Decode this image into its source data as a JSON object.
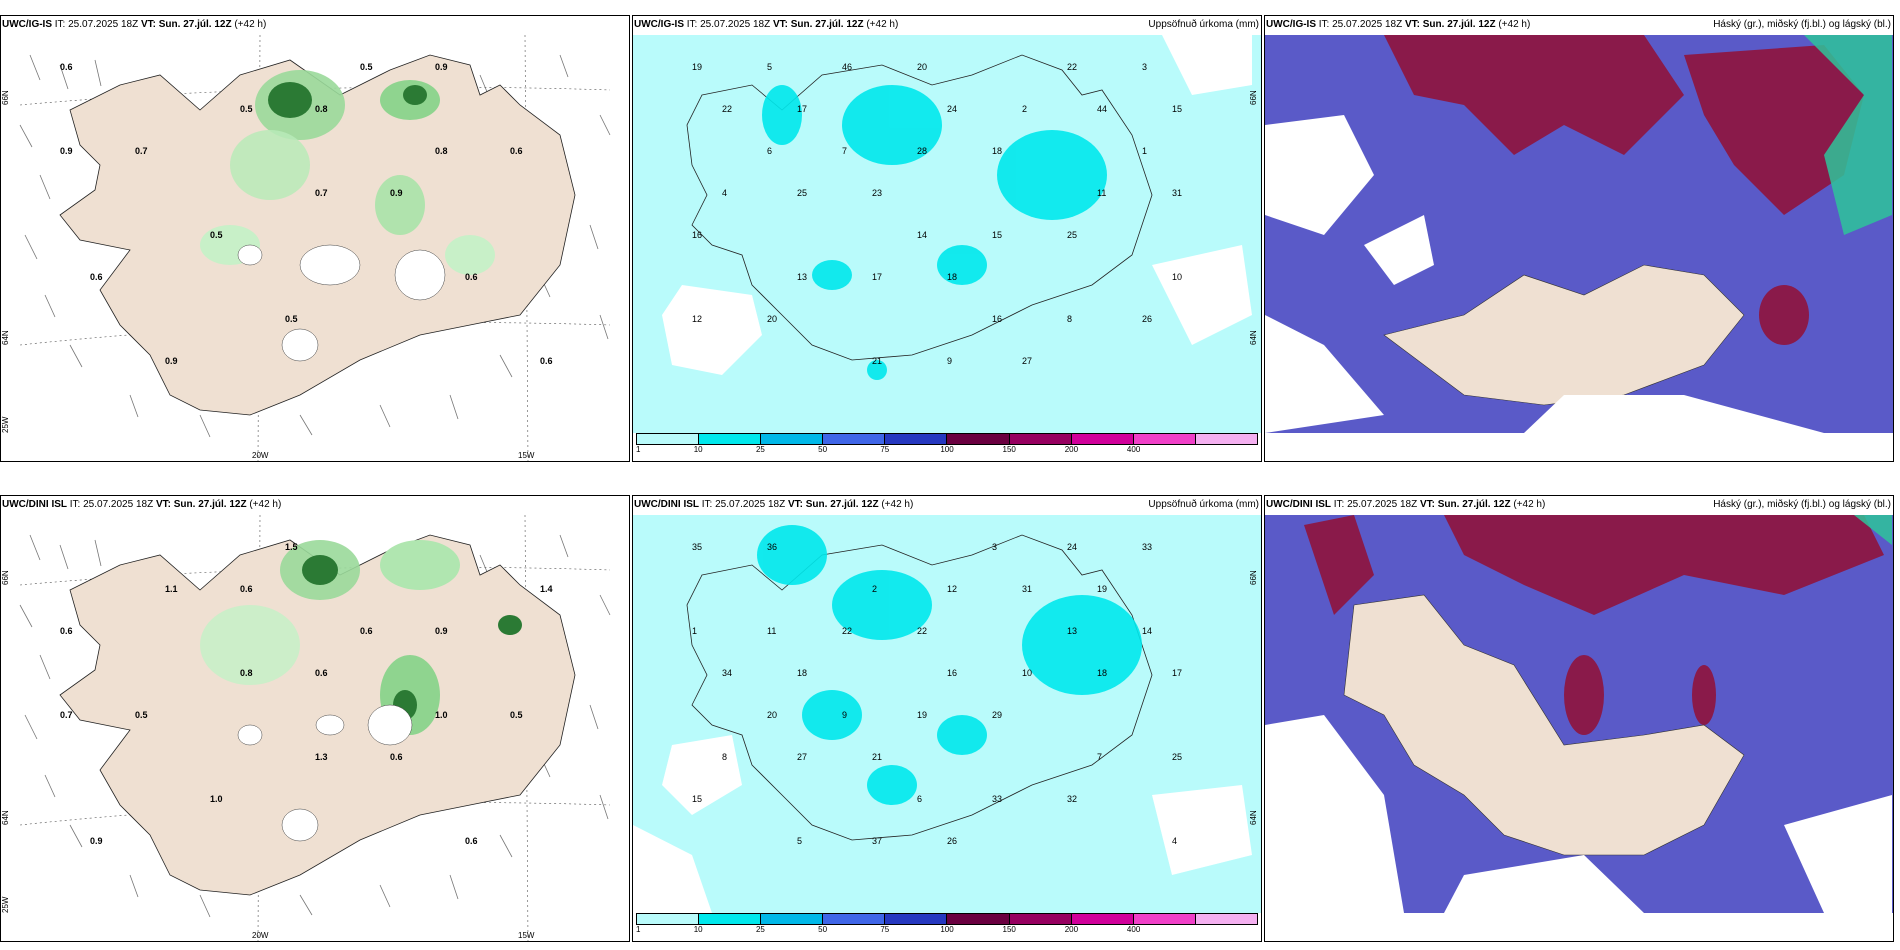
{
  "panels": [
    {
      "model": "UWC/IG-IS",
      "it_label": "IT:",
      "it_value": "25.07.2025 18Z",
      "vt_label": "VT:",
      "vt_value": "Sun. 27.júl. 12Z",
      "lead": "(+42 h)",
      "right_title": "",
      "lat_labels": [
        "66N",
        "64N",
        "25W"
      ],
      "lon_labels": [
        "20W",
        "15W"
      ],
      "values": [
        "0.6",
        "0.9",
        "0.8",
        "0.7",
        "0.6",
        "0.9",
        "0.5",
        "0.6",
        "0.6",
        "0.5",
        "0.9",
        "0.6",
        "0.5",
        "0.5",
        "0.9",
        "0.8",
        "0.7"
      ]
    },
    {
      "model": "UWC/IG-IS",
      "it_label": "IT:",
      "it_value": "25.07.2025 18Z",
      "vt_label": "VT:",
      "vt_value": "Sun. 27.júl. 12Z",
      "lead": "(+42 h)",
      "right_title": "Uppsöfnuð úrkoma (mm)",
      "lat_labels": [
        "66N",
        "64N"
      ],
      "values": [
        "20",
        "17",
        "15",
        "18",
        "23",
        "16",
        "25",
        "18",
        "20",
        "26",
        "27",
        "46",
        "22",
        "44",
        "28",
        "25",
        "31",
        "15",
        "17",
        "12",
        "8",
        "9",
        "5",
        "3",
        "2",
        "7",
        "4",
        "11",
        "14",
        "13",
        "10",
        "16",
        "21",
        "19",
        "22",
        "24",
        "6",
        "1"
      ]
    },
    {
      "model": "UWC/IG-IS",
      "it_label": "IT:",
      "it_value": "25.07.2025 18Z",
      "vt_label": "VT:",
      "vt_value": "Sun. 27.júl. 12Z",
      "lead": "(+42 h)",
      "right_title": "Háský (gr.), miðský (fj.bl.) og lágský (bl.)"
    },
    {
      "model": "UWC/DINI ISL",
      "it_label": "IT:",
      "it_value": "25.07.2025 18Z",
      "vt_label": "VT:",
      "vt_value": "Sun. 27.júl. 12Z",
      "lead": "(+42 h)",
      "right_title": "",
      "lat_labels": [
        "66N",
        "64N",
        "25W"
      ],
      "lon_labels": [
        "20W",
        "15W"
      ],
      "values": [
        "0.6",
        "0.6",
        "0.9",
        "0.6",
        "0.5",
        "0.5",
        "0.6",
        "1.0",
        "0.9",
        "0.6",
        "1.5",
        "1.1",
        "1.4",
        "0.6",
        "0.8",
        "0.7",
        "1.0",
        "1.3"
      ]
    },
    {
      "model": "UWC/DINI ISL",
      "it_label": "IT:",
      "it_value": "25.07.2025 18Z",
      "vt_label": "VT:",
      "vt_value": "Sun. 27.júl. 12Z",
      "lead": "(+42 h)",
      "right_title": "Uppsöfnuð úrkoma (mm)",
      "lat_labels": [
        "66N",
        "64N"
      ],
      "values": [
        "19",
        "22",
        "18",
        "17",
        "29",
        "21",
        "15",
        "32",
        "26",
        "36",
        "33",
        "31",
        "22",
        "34",
        "18",
        "19",
        "27",
        "25",
        "33",
        "37",
        "35",
        "24",
        "12",
        "11",
        "14",
        "10",
        "9",
        "8",
        "7",
        "6",
        "5",
        "4",
        "3",
        "2",
        "1",
        "13",
        "16",
        "20"
      ]
    },
    {
      "model": "UWC/DINI ISL",
      "it_label": "IT:",
      "it_value": "25.07.2025 18Z",
      "vt_label": "VT:",
      "vt_value": "Sun. 27.júl. 12Z",
      "lead": "(+42 h)",
      "right_title": "Háský (gr.), miðský (fj.bl.) og lágský (bl.)"
    }
  ],
  "colorbar": {
    "colors": [
      "#b9fbfb",
      "#00e8ec",
      "#00b8e8",
      "#3f66e8",
      "#2638c0",
      "#6a0040",
      "#960060",
      "#d0009a",
      "#f040c8",
      "#f4b0f0"
    ],
    "labels": [
      "1",
      "10",
      "25",
      "50",
      "75",
      "100",
      "150",
      "200",
      "400"
    ]
  }
}
